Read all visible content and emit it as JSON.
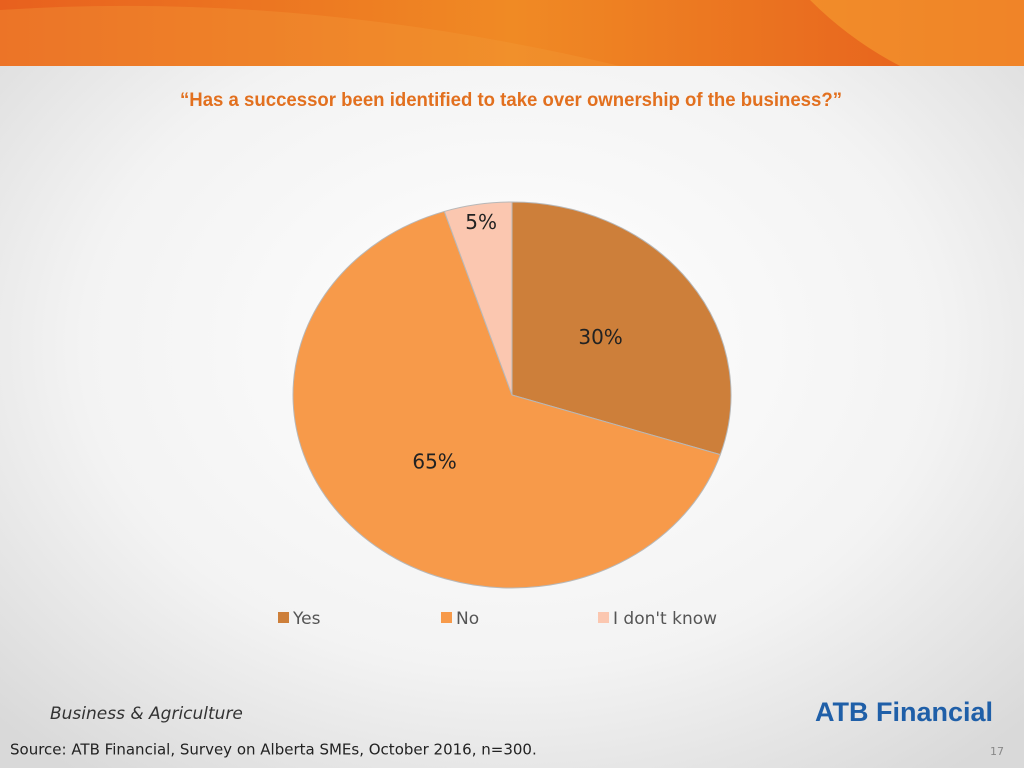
{
  "chart_data": {
    "type": "pie",
    "title": "“Has a successor been identified to take over ownership of the business?”",
    "categories": [
      "Yes",
      "No",
      "I don't know"
    ],
    "values": [
      30,
      65,
      5
    ],
    "value_labels": [
      "30%",
      "65%",
      "5%"
    ],
    "colors": [
      "#cd7f3a",
      "#f79a4a",
      "#fbc7b0"
    ],
    "legend": "bottom"
  },
  "footer": {
    "section": "Business & Agriculture",
    "logo": "ATB Financial",
    "source": "Source:  ATB Financial, Survey on Alberta SMEs, October 2016, n=300.",
    "page": "17"
  }
}
